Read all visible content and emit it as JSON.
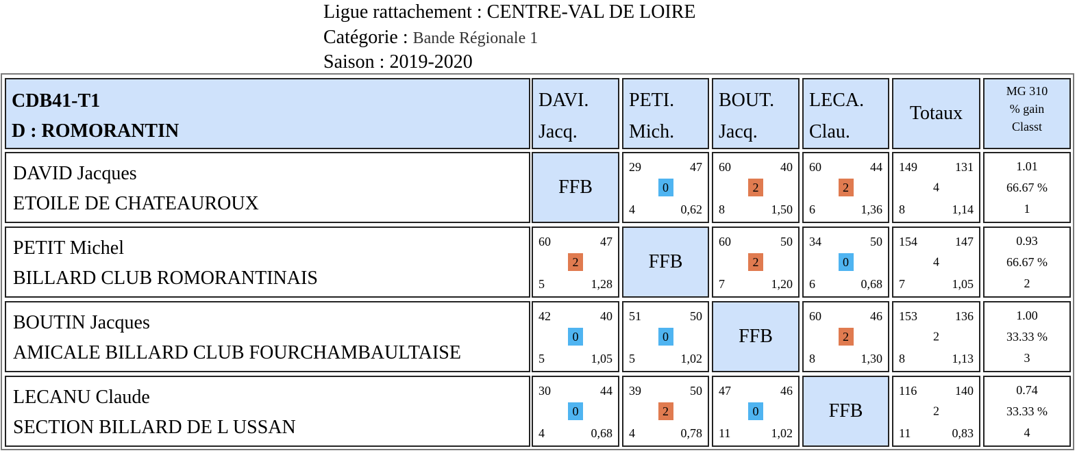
{
  "header": {
    "ligue_label": "Ligue rattachement :",
    "ligue_value": "CENTRE-VAL DE LOIRE",
    "categorie_label": "Catégorie :",
    "categorie_value": "Bande Régionale 1",
    "saison_label": "Saison :",
    "saison_value": "2019-2020"
  },
  "table": {
    "team_code": "CDB41-T1",
    "team_city": "D : ROMORANTIN",
    "columns": [
      {
        "l1": "DAVI.",
        "l2": "Jacq."
      },
      {
        "l1": "PETI.",
        "l2": "Mich."
      },
      {
        "l1": "BOUT.",
        "l2": "Jacq."
      },
      {
        "l1": "LECA.",
        "l2": "Clau."
      }
    ],
    "totaux_label": "Totaux",
    "mg_label": [
      "MG 310",
      "% gain",
      "Classt"
    ],
    "ffb_label": "FFB",
    "players": [
      {
        "name": "DAVID Jacques",
        "club": "ETOILE DE CHATEAUROUX",
        "matches": [
          null,
          {
            "pts": "29",
            "opp": "47",
            "result": "0",
            "inn": "4",
            "avg": "0,62"
          },
          {
            "pts": "60",
            "opp": "40",
            "result": "2",
            "inn": "8",
            "avg": "1,50"
          },
          {
            "pts": "60",
            "opp": "44",
            "result": "2",
            "inn": "6",
            "avg": "1,36"
          }
        ],
        "totals": {
          "pts": "149",
          "opp": "131",
          "mid": "4",
          "inn": "8",
          "avg": "1,14"
        },
        "mg": [
          "1.01",
          "66.67 %",
          "1"
        ]
      },
      {
        "name": "PETIT Michel",
        "club": "BILLARD CLUB ROMORANTINAIS",
        "matches": [
          {
            "pts": "60",
            "opp": "47",
            "result": "2",
            "inn": "5",
            "avg": "1,28"
          },
          null,
          {
            "pts": "60",
            "opp": "50",
            "result": "2",
            "inn": "7",
            "avg": "1,20"
          },
          {
            "pts": "34",
            "opp": "50",
            "result": "0",
            "inn": "6",
            "avg": "0,68"
          }
        ],
        "totals": {
          "pts": "154",
          "opp": "147",
          "mid": "4",
          "inn": "7",
          "avg": "1,05"
        },
        "mg": [
          "0.93",
          "66.67 %",
          "2"
        ]
      },
      {
        "name": "BOUTIN Jacques",
        "club": "AMICALE BILLARD CLUB FOURCHAMBAULTAISE",
        "matches": [
          {
            "pts": "42",
            "opp": "40",
            "result": "0",
            "inn": "5",
            "avg": "1,05"
          },
          {
            "pts": "51",
            "opp": "50",
            "result": "0",
            "inn": "5",
            "avg": "1,02"
          },
          null,
          {
            "pts": "60",
            "opp": "46",
            "result": "2",
            "inn": "8",
            "avg": "1,30"
          }
        ],
        "totals": {
          "pts": "153",
          "opp": "136",
          "mid": "2",
          "inn": "8",
          "avg": "1,13"
        },
        "mg": [
          "1.00",
          "33.33 %",
          "3"
        ]
      },
      {
        "name": "LECANU Claude",
        "club": "SECTION BILLARD DE L USSAN",
        "matches": [
          {
            "pts": "30",
            "opp": "44",
            "result": "0",
            "inn": "4",
            "avg": "0,68"
          },
          {
            "pts": "39",
            "opp": "50",
            "result": "2",
            "inn": "4",
            "avg": "0,78"
          },
          {
            "pts": "47",
            "opp": "46",
            "result": "0",
            "inn": "11",
            "avg": "1,02"
          },
          null
        ],
        "totals": {
          "pts": "116",
          "opp": "140",
          "mid": "2",
          "inn": "11",
          "avg": "0,83"
        },
        "mg": [
          "0.74",
          "33.33 %",
          "4"
        ]
      }
    ]
  },
  "colors": {
    "header_bg": "#cfe2fb",
    "win_badge": "#e07b50",
    "loss_badge": "#4fb4f1"
  }
}
